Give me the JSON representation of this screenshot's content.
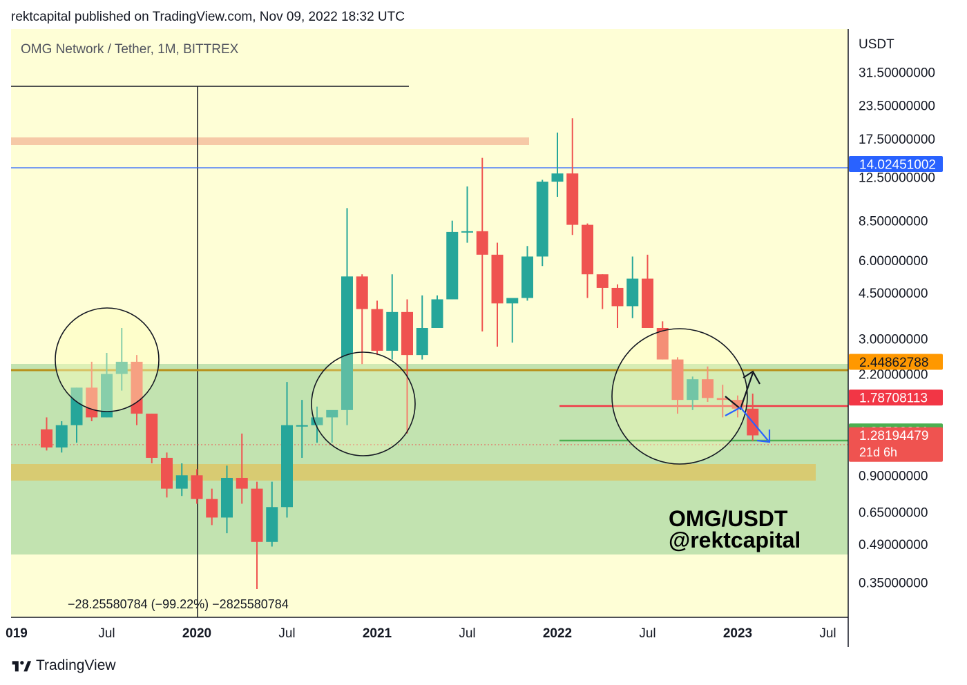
{
  "header": {
    "published_line": "rektcapital published on TradingView.com, Nov 09, 2022 18:32 UTC"
  },
  "chart": {
    "symbol_line": "OMG Network / Tether, 1M, BITTREX",
    "currency_label": "USDT",
    "watermark_line1": "OMG/USDT",
    "watermark_line2": "@rektcapital",
    "measure_text": "−28.25580784 (−99.22%) −2825580784",
    "colors": {
      "background": "#fefed6",
      "up_candle": "#26a69a",
      "down_candle": "#ef5350",
      "demand_zone": "#c2e3b0",
      "gold_band": "#d8cb72",
      "pink_band": "#f6c9a7"
    }
  },
  "footer": {
    "brand": "TradingView"
  },
  "chart_data": {
    "type": "candlestick",
    "scale": "log",
    "interval": "1M",
    "symbol": "OMG/USDT",
    "exchange": "BITTREX",
    "y_ticks": [
      "31.50000000",
      "23.50000000",
      "17.50000000",
      "12.50000000",
      "8.50000000",
      "6.00000000",
      "4.50000000",
      "3.00000000",
      "2.20000000",
      "0.90000000",
      "0.65000000",
      "0.49000000",
      "0.35000000"
    ],
    "x_ticks": [
      {
        "label": "019",
        "date": "2019-01",
        "bold": true
      },
      {
        "label": "Jul",
        "date": "2019-07",
        "bold": false
      },
      {
        "label": "2020",
        "date": "2020-01",
        "bold": true
      },
      {
        "label": "Jul",
        "date": "2020-07",
        "bold": false
      },
      {
        "label": "2021",
        "date": "2021-01",
        "bold": true
      },
      {
        "label": "Jul",
        "date": "2021-07",
        "bold": false
      },
      {
        "label": "2022",
        "date": "2022-01",
        "bold": true
      },
      {
        "label": "Jul",
        "date": "2022-07",
        "bold": false
      },
      {
        "label": "2023",
        "date": "2023-01",
        "bold": true
      },
      {
        "label": "Jul",
        "date": "2023-07",
        "bold": false
      }
    ],
    "price_labels": [
      {
        "text": "14.02451002",
        "price": 14.02451002,
        "color": "#2962ff"
      },
      {
        "text": "2.44862788",
        "price": 2.44862788,
        "color": "#ff9800"
      },
      {
        "text": "1.78708113",
        "price": 1.78708113,
        "color": "#f23645"
      },
      {
        "text": "1.32582801",
        "price": 1.32582801,
        "color": "#4caf50"
      },
      {
        "text": "1.28194479",
        "price": 1.28194479,
        "color": "#ef5350",
        "sub": "21d 6h"
      }
    ],
    "candles": [
      {
        "date": "2019-03",
        "o": 1.35,
        "h": 1.5,
        "l": 1.12,
        "c": 1.15
      },
      {
        "date": "2019-04",
        "o": 1.15,
        "h": 1.45,
        "l": 1.1,
        "c": 1.4
      },
      {
        "date": "2019-05",
        "o": 1.4,
        "h": 1.95,
        "l": 1.2,
        "c": 1.95
      },
      {
        "date": "2019-06",
        "o": 1.95,
        "h": 2.45,
        "l": 1.45,
        "c": 1.5
      },
      {
        "date": "2019-07",
        "o": 1.5,
        "h": 2.65,
        "l": 1.5,
        "c": 2.2
      },
      {
        "date": "2019-08",
        "o": 2.2,
        "h": 3.3,
        "l": 1.9,
        "c": 2.45
      },
      {
        "date": "2019-09",
        "o": 2.45,
        "h": 2.6,
        "l": 1.4,
        "c": 1.55
      },
      {
        "date": "2019-10",
        "o": 1.55,
        "h": 1.55,
        "l": 1.0,
        "c": 1.05
      },
      {
        "date": "2019-11",
        "o": 1.05,
        "h": 1.1,
        "l": 0.74,
        "c": 0.8
      },
      {
        "date": "2019-12",
        "o": 0.8,
        "h": 1.0,
        "l": 0.75,
        "c": 0.9
      },
      {
        "date": "2020-01",
        "o": 0.9,
        "h": 0.95,
        "l": 0.7,
        "c": 0.73
      },
      {
        "date": "2020-02",
        "o": 0.73,
        "h": 0.8,
        "l": 0.58,
        "c": 0.62
      },
      {
        "date": "2020-03",
        "o": 0.62,
        "h": 0.98,
        "l": 0.54,
        "c": 0.88
      },
      {
        "date": "2020-04",
        "o": 0.88,
        "h": 1.3,
        "l": 0.7,
        "c": 0.8
      },
      {
        "date": "2020-05",
        "o": 0.8,
        "h": 0.85,
        "l": 0.33,
        "c": 0.5
      },
      {
        "date": "2020-06",
        "o": 0.5,
        "h": 0.85,
        "l": 0.48,
        "c": 0.68
      },
      {
        "date": "2020-07",
        "o": 0.68,
        "h": 2.05,
        "l": 0.62,
        "c": 1.4
      },
      {
        "date": "2020-08",
        "o": 1.4,
        "h": 1.75,
        "l": 1.05,
        "c": 1.4
      },
      {
        "date": "2020-09",
        "o": 1.4,
        "h": 1.65,
        "l": 1.2,
        "c": 1.5
      },
      {
        "date": "2020-10",
        "o": 1.5,
        "h": 1.55,
        "l": 1.2,
        "c": 1.6
      },
      {
        "date": "2020-11",
        "o": 1.6,
        "h": 9.5,
        "l": 1.4,
        "c": 5.2
      },
      {
        "date": "2020-12",
        "o": 5.2,
        "h": 5.3,
        "l": 2.4,
        "c": 3.9
      },
      {
        "date": "2021-01",
        "o": 3.9,
        "h": 4.2,
        "l": 2.6,
        "c": 2.7
      },
      {
        "date": "2021-02",
        "o": 2.7,
        "h": 5.3,
        "l": 2.5,
        "c": 3.8
      },
      {
        "date": "2021-03",
        "o": 3.8,
        "h": 4.25,
        "l": 1.3,
        "c": 2.6
      },
      {
        "date": "2021-04",
        "o": 2.6,
        "h": 4.4,
        "l": 2.5,
        "c": 3.3
      },
      {
        "date": "2021-05",
        "o": 3.3,
        "h": 4.4,
        "l": 3.3,
        "c": 4.25
      },
      {
        "date": "2021-06",
        "o": 4.25,
        "h": 8.5,
        "l": 4.25,
        "c": 7.7
      },
      {
        "date": "2021-07",
        "o": 7.7,
        "h": 11.5,
        "l": 7.0,
        "c": 7.75
      },
      {
        "date": "2021-08",
        "o": 7.75,
        "h": 14.8,
        "l": 3.2,
        "c": 6.3
      },
      {
        "date": "2021-09",
        "o": 6.3,
        "h": 7.0,
        "l": 2.8,
        "c": 4.1
      },
      {
        "date": "2021-10",
        "o": 4.1,
        "h": 4.2,
        "l": 2.9,
        "c": 4.3
      },
      {
        "date": "2021-11",
        "o": 4.3,
        "h": 6.8,
        "l": 4.2,
        "c": 6.2
      },
      {
        "date": "2021-12",
        "o": 6.2,
        "h": 12.2,
        "l": 5.7,
        "c": 12.0
      },
      {
        "date": "2022-01",
        "o": 12.0,
        "h": 18.5,
        "l": 10.5,
        "c": 12.9
      },
      {
        "date": "2022-02",
        "o": 12.9,
        "h": 21.0,
        "l": 7.5,
        "c": 8.2
      },
      {
        "date": "2022-03",
        "o": 8.2,
        "h": 8.3,
        "l": 4.3,
        "c": 5.3
      },
      {
        "date": "2022-04",
        "o": 5.3,
        "h": 5.3,
        "l": 3.9,
        "c": 4.7
      },
      {
        "date": "2022-05",
        "o": 4.7,
        "h": 4.85,
        "l": 3.3,
        "c": 4.0
      },
      {
        "date": "2022-06",
        "o": 4.0,
        "h": 6.2,
        "l": 3.6,
        "c": 5.1
      },
      {
        "date": "2022-07",
        "o": 5.1,
        "h": 6.3,
        "l": 3.5,
        "c": 3.3
      },
      {
        "date": "2022-08",
        "o": 3.3,
        "h": 3.5,
        "l": 2.5,
        "c": 2.5
      },
      {
        "date": "2022-09",
        "o": 2.5,
        "h": 2.55,
        "l": 1.55,
        "c": 1.75
      },
      {
        "date": "2022-10",
        "o": 1.75,
        "h": 2.15,
        "l": 1.6,
        "c": 2.1
      },
      {
        "date": "2022-11",
        "o": 2.1,
        "h": 2.35,
        "l": 1.72,
        "c": 1.78
      },
      {
        "date": "2022-12",
        "o": 1.78,
        "h": 2.0,
        "l": 1.5,
        "c": 1.75
      },
      {
        "date": "2023-01",
        "o": 1.75,
        "h": 1.82,
        "l": 1.5,
        "c": 1.62
      },
      {
        "date": "2023-02",
        "o": 1.62,
        "h": 1.85,
        "l": 1.22,
        "c": 1.28
      }
    ]
  }
}
